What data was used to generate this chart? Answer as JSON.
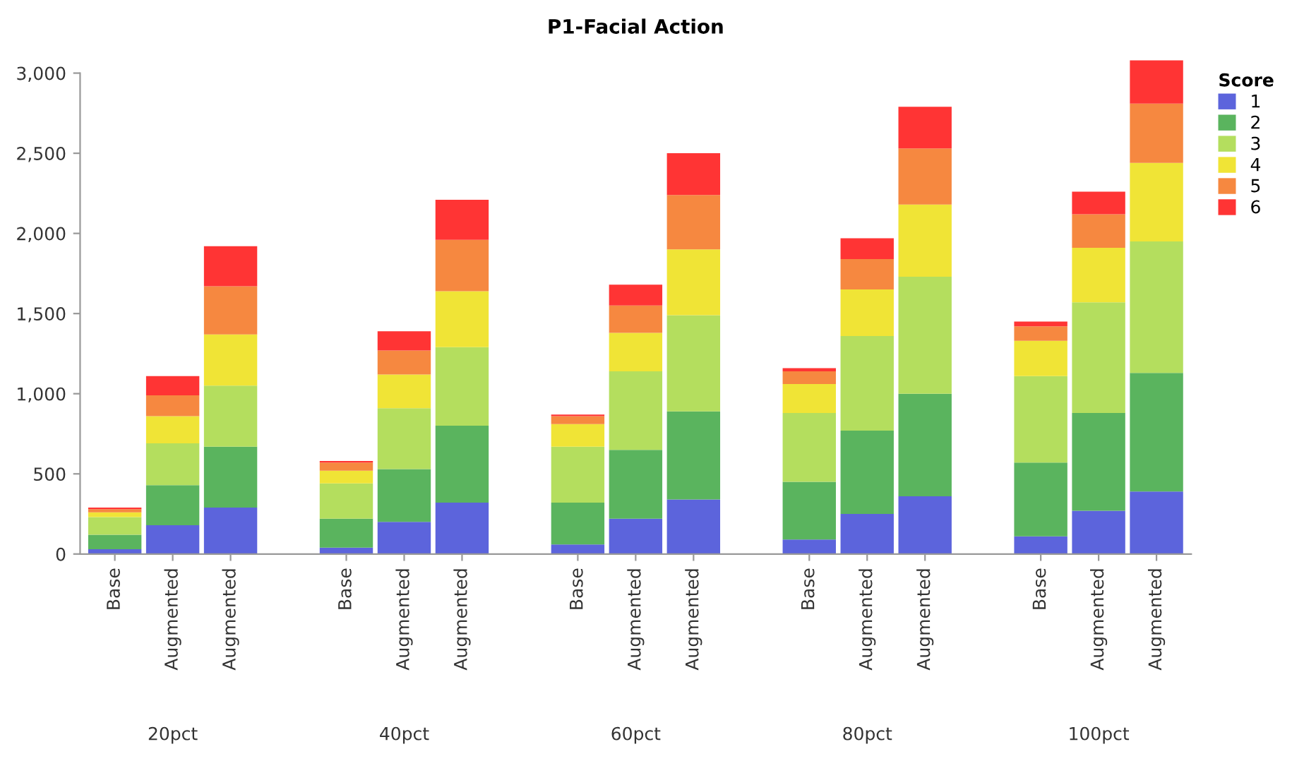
{
  "chart_data": {
    "type": "bar",
    "stacked": true,
    "title": "P1-Facial Action",
    "legend_title": "Score",
    "legend": "top right",
    "grid": false,
    "categories": [
      "Base",
      "Augmented",
      "Augmented",
      null,
      "Base",
      "Augmented",
      "Augmented",
      null,
      "Base",
      "Augmented",
      "Augmented",
      null,
      "Base",
      "Augmented",
      "Augmented",
      null,
      "Base",
      "Augmented",
      "Augmented"
    ],
    "annotations": [
      "20pct",
      "40pct",
      "60pct",
      "80pct",
      "100pct"
    ],
    "ylim": [
      0,
      3100
    ],
    "yticks": [
      0,
      500,
      {
        "value": 1000,
        "label": "1,000"
      },
      {
        "value": 1500,
        "label": "1,500"
      },
      {
        "value": 2000,
        "label": "2,000"
      },
      {
        "value": 2500,
        "label": "2,500"
      },
      {
        "value": 3000,
        "label": "3,000"
      }
    ],
    "series": [
      {
        "name": "1",
        "color": "#5c64dc",
        "values": [
          30,
          180,
          290,
          null,
          40,
          200,
          320,
          null,
          60,
          220,
          340,
          null,
          90,
          250,
          360,
          null,
          110,
          270,
          390
        ]
      },
      {
        "name": "2",
        "color": "#5ab45e",
        "values": [
          90,
          250,
          380,
          null,
          180,
          330,
          480,
          null,
          260,
          430,
          550,
          null,
          360,
          520,
          640,
          null,
          460,
          610,
          740
        ]
      },
      {
        "name": "3",
        "color": "#b4de5e",
        "values": [
          110,
          260,
          380,
          null,
          220,
          380,
          490,
          null,
          350,
          490,
          600,
          null,
          430,
          590,
          730,
          null,
          540,
          690,
          820
        ]
      },
      {
        "name": "4",
        "color": "#f0e436",
        "values": [
          30,
          170,
          320,
          null,
          80,
          210,
          350,
          null,
          140,
          240,
          410,
          null,
          180,
          290,
          450,
          null,
          220,
          340,
          490
        ]
      },
      {
        "name": "5",
        "color": "#f68840",
        "values": [
          20,
          130,
          300,
          null,
          50,
          150,
          320,
          null,
          50,
          170,
          340,
          null,
          80,
          190,
          350,
          null,
          90,
          210,
          370
        ]
      },
      {
        "name": "6",
        "color": "#ff3434",
        "values": [
          10,
          120,
          250,
          null,
          10,
          120,
          250,
          null,
          10,
          130,
          260,
          null,
          20,
          130,
          260,
          null,
          30,
          140,
          270
        ]
      }
    ]
  }
}
